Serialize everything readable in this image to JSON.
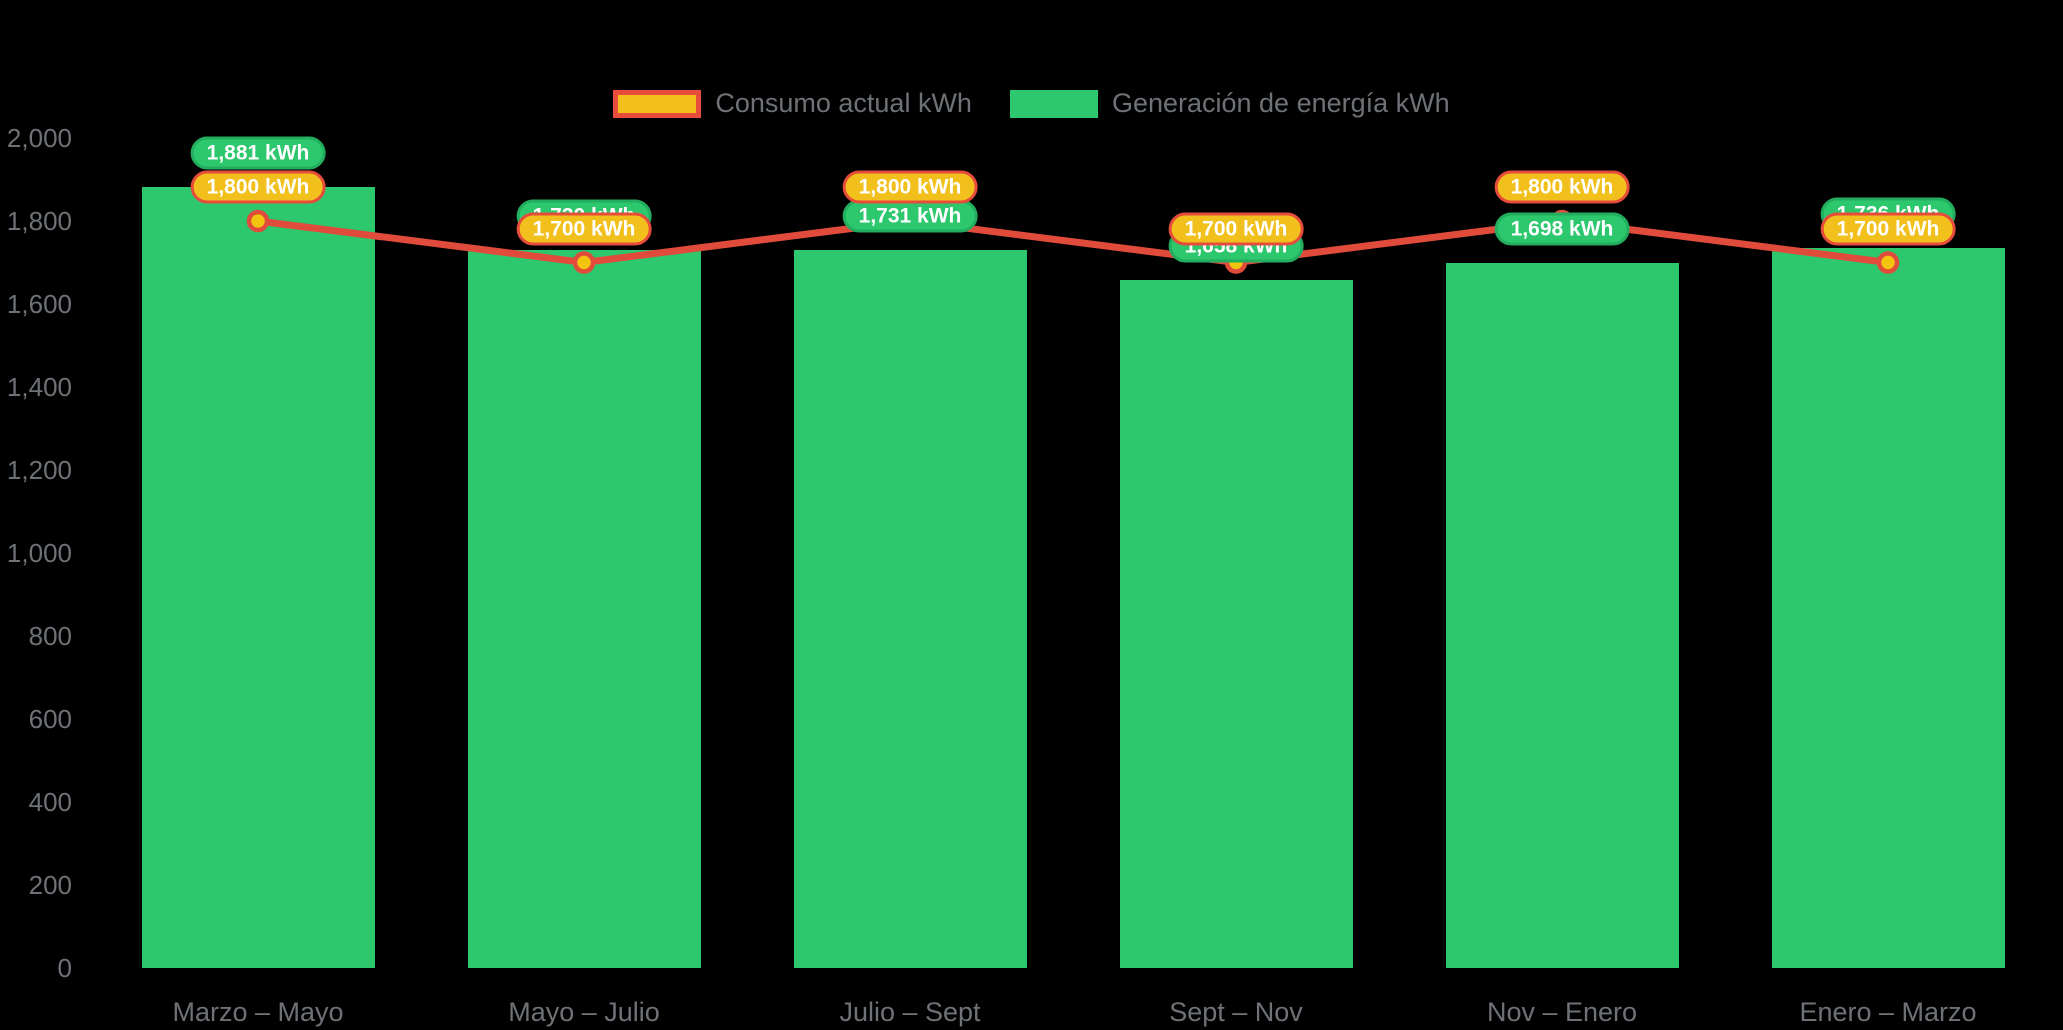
{
  "legend": {
    "items": [
      {
        "label": "Consumo actual kWh",
        "swatch_fill": "#f2c01c",
        "swatch_border": "#e74c3c"
      },
      {
        "label": "Generación de energía kWh",
        "swatch_fill": "#2dc76d",
        "swatch_border": "#2dc76d"
      }
    ]
  },
  "chart_data": {
    "type": "bar",
    "categories": [
      "Marzo – Mayo",
      "Mayo – Julio",
      "Julio – Sept",
      "Sept – Nov",
      "Nov – Enero",
      "Enero – Marzo"
    ],
    "series": [
      {
        "name": "Generación de energía kWh",
        "type": "bar",
        "color": "#2dc76d",
        "values": [
          1881,
          1730,
          1731,
          1658,
          1698,
          1736
        ],
        "labels": [
          "1,881 kWh",
          "1,730 kWh",
          "1,731 kWh",
          "1,658 kWh",
          "1,698 kWh",
          "1,736 kWh"
        ]
      },
      {
        "name": "Consumo actual kWh",
        "type": "line",
        "color": "#e04b3c",
        "marker_fill": "#f1c40f",
        "values": [
          1800,
          1700,
          1800,
          1700,
          1800,
          1700
        ],
        "labels": [
          "1,800 kWh",
          "1,700 kWh",
          "1,800 kWh",
          "1,700 kWh",
          "1,800 kWh",
          "1,700 kWh"
        ]
      }
    ],
    "title": "",
    "xlabel": "",
    "ylabel": "",
    "ylim": [
      0,
      2000
    ],
    "ytick_step": 200,
    "yticks": [
      "0",
      "200",
      "400",
      "600",
      "800",
      "1,000",
      "1,200",
      "1,400",
      "1,600",
      "1,800",
      "2,000"
    ],
    "grid": false,
    "legend_position": "top",
    "background": "#000000",
    "axis_text_color": "#6e7276"
  }
}
